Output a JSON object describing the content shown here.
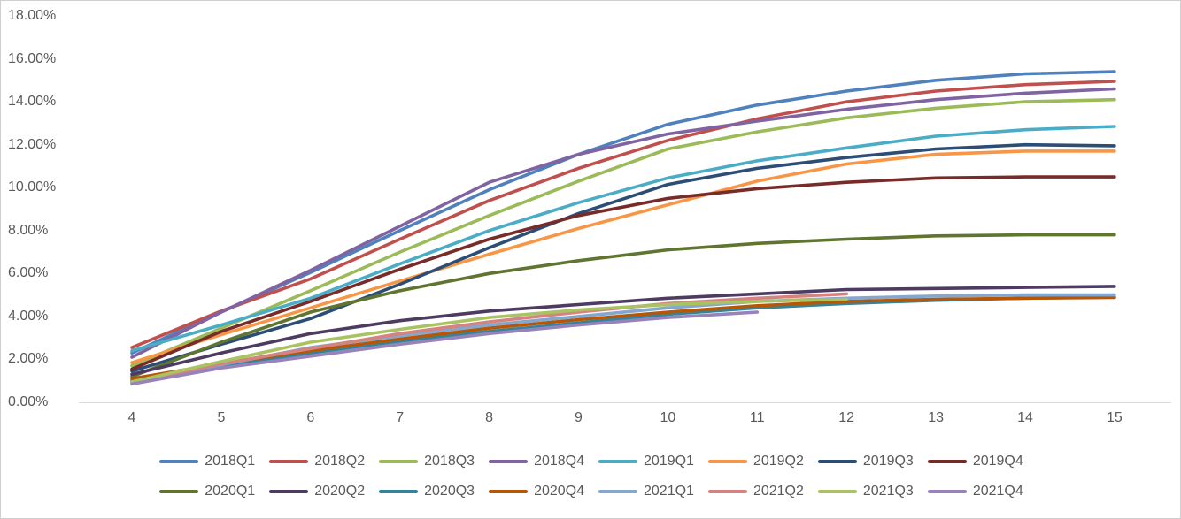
{
  "chart_data": {
    "type": "line",
    "title": "",
    "xlabel": "",
    "ylabel": "",
    "xlim": [
      4,
      15
    ],
    "ylim": [
      0,
      18
    ],
    "grid": false,
    "legend_position": "bottom-two-rows",
    "x": [
      4,
      5,
      6,
      7,
      8,
      9,
      10,
      11,
      12,
      13,
      14,
      15
    ],
    "x_tick_labels": [
      "4",
      "5",
      "6",
      "7",
      "8",
      "9",
      "10",
      "11",
      "12",
      "13",
      "14",
      "15"
    ],
    "y_tick_labels": [
      "18.00%",
      "16.00%",
      "14.00%",
      "12.00%",
      "10.00%",
      "8.00%",
      "6.00%",
      "4.00%",
      "2.00%",
      "0.00%"
    ],
    "y_tick_values": [
      18,
      16,
      14,
      12,
      10,
      8,
      6,
      4,
      2,
      0
    ],
    "y_unit": "percent",
    "series": [
      {
        "name": "2018Q1",
        "color": "#4F81BD",
        "values": [
          2.3,
          4.2,
          6.05,
          8.0,
          9.9,
          11.55,
          12.95,
          13.85,
          14.5,
          15.0,
          15.3,
          15.4
        ]
      },
      {
        "name": "2018Q2",
        "color": "#C0504D",
        "values": [
          2.55,
          4.25,
          5.75,
          7.6,
          9.4,
          10.9,
          12.2,
          13.2,
          14.0,
          14.5,
          14.8,
          14.95
        ]
      },
      {
        "name": "2018Q3",
        "color": "#9BBB59",
        "values": [
          1.7,
          3.45,
          5.2,
          7.0,
          8.7,
          10.3,
          11.8,
          12.6,
          13.25,
          13.7,
          14.0,
          14.1
        ]
      },
      {
        "name": "2018Q4",
        "color": "#8064A2",
        "values": [
          2.1,
          4.2,
          6.15,
          8.2,
          10.25,
          11.55,
          12.5,
          13.1,
          13.65,
          14.1,
          14.4,
          14.6
        ]
      },
      {
        "name": "2019Q1",
        "color": "#4BACC6",
        "values": [
          2.4,
          3.6,
          4.85,
          6.45,
          8.0,
          9.3,
          10.45,
          11.25,
          11.85,
          12.4,
          12.7,
          12.85
        ]
      },
      {
        "name": "2019Q2",
        "color": "#F79646",
        "values": [
          1.85,
          3.15,
          4.4,
          5.65,
          6.9,
          8.1,
          9.2,
          10.3,
          11.1,
          11.55,
          11.7,
          11.7
        ]
      },
      {
        "name": "2019Q3",
        "color": "#2C4D75",
        "values": [
          1.45,
          2.7,
          3.9,
          5.5,
          7.2,
          8.8,
          10.15,
          10.9,
          11.4,
          11.8,
          12.0,
          11.95
        ]
      },
      {
        "name": "2019Q4",
        "color": "#772C2A",
        "values": [
          1.55,
          3.3,
          4.7,
          6.2,
          7.6,
          8.7,
          9.5,
          9.95,
          10.25,
          10.45,
          10.5,
          10.5
        ]
      },
      {
        "name": "2020Q1",
        "color": "#5F7530",
        "values": [
          1.2,
          2.8,
          4.2,
          5.2,
          6.0,
          6.6,
          7.1,
          7.4,
          7.6,
          7.75,
          7.8,
          7.8
        ]
      },
      {
        "name": "2020Q2",
        "color": "#4D3B62",
        "values": [
          1.3,
          2.3,
          3.2,
          3.8,
          4.25,
          4.55,
          4.85,
          5.05,
          5.25,
          5.3,
          5.35,
          5.4
        ]
      },
      {
        "name": "2020Q3",
        "color": "#31849B",
        "values": [
          1.0,
          1.7,
          2.3,
          2.85,
          3.3,
          3.7,
          4.1,
          4.4,
          4.6,
          4.75,
          4.85,
          4.9
        ]
      },
      {
        "name": "2020Q4",
        "color": "#B65708",
        "values": [
          1.1,
          1.8,
          2.4,
          2.95,
          3.45,
          3.85,
          4.2,
          4.5,
          4.7,
          4.8,
          4.85,
          4.88
        ]
      },
      {
        "name": "2021Q1",
        "color": "#84A7D0",
        "values": [
          0.95,
          1.75,
          2.55,
          3.1,
          3.6,
          4.0,
          4.4,
          4.7,
          4.85,
          4.95,
          5.0,
          5.0
        ]
      },
      {
        "name": "2021Q2",
        "color": "#D6827F",
        "values": [
          0.9,
          1.8,
          2.5,
          3.2,
          3.75,
          4.2,
          4.6,
          4.85,
          5.05
        ]
      },
      {
        "name": "2021Q3",
        "color": "#A9C262",
        "values": [
          0.95,
          1.9,
          2.8,
          3.4,
          3.95,
          4.3,
          4.55,
          4.7,
          4.8
        ]
      },
      {
        "name": "2021Q4",
        "color": "#9782BB",
        "values": [
          0.85,
          1.6,
          2.15,
          2.7,
          3.2,
          3.6,
          3.95,
          4.2
        ]
      }
    ]
  },
  "style": {
    "axis_text_color": "#595959",
    "axis_line_color": "#D9D9D9",
    "background": "#FFFFFF",
    "border_color": "#CFCFCF"
  }
}
